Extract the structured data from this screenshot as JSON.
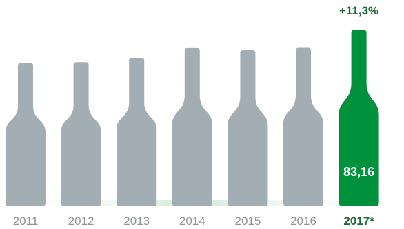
{
  "chart_data": {
    "type": "bar",
    "style": "bottle pictogram",
    "categories": [
      "2011",
      "2012",
      "2013",
      "2014",
      "2015",
      "2016",
      "2017*"
    ],
    "values": [
      67.6,
      68.0,
      70.0,
      74.6,
      73.6,
      74.7,
      83.16
    ],
    "highlight_index": 6,
    "highlight_value_label": "83,16",
    "highlight_change_label": "+11,3%",
    "colors": {
      "bar": "#a3aeb4",
      "highlight": "#00913d",
      "highlight_text": "#1a6b35",
      "year_text": "#8c9498",
      "shadow": "#d4ecd9"
    },
    "title": "",
    "xlabel": "",
    "ylabel": "",
    "grid": false,
    "legend": "none"
  }
}
